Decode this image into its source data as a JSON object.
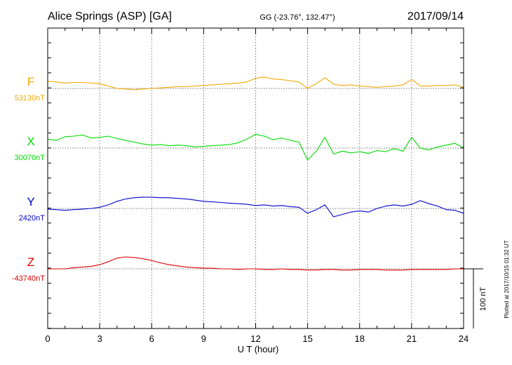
{
  "chart_data": {
    "type": "line",
    "title": "Alice Springs (ASP)  [GA]",
    "subtitle": "GG (-23.76°, 132.47°)",
    "date": "2017/09/14",
    "xlabel": "U T (hour)",
    "xlim": [
      0,
      24
    ],
    "xticks": [
      "0",
      "3",
      "6",
      "9",
      "12",
      "15",
      "18",
      "21",
      "24"
    ],
    "scale_label": "100 nT",
    "scale_nT": 100,
    "footer": "Plotted at 2017/10/15 01:32 UT",
    "grid": true,
    "x": [
      0,
      0.5,
      1,
      1.5,
      2,
      2.5,
      3,
      3.5,
      4,
      4.5,
      5,
      5.5,
      6,
      6.5,
      7,
      7.5,
      8,
      8.5,
      9,
      9.5,
      10,
      10.5,
      11,
      11.5,
      12,
      12.5,
      13,
      13.5,
      14,
      14.5,
      15,
      15.5,
      16,
      16.5,
      17,
      17.5,
      18,
      18.5,
      19,
      19.5,
      20,
      20.5,
      21,
      21.5,
      22,
      22.5,
      23,
      23.5,
      24
    ],
    "series": [
      {
        "name": "F",
        "baseline_label": "53130nT",
        "color": "#f0a800",
        "baseline": 53130,
        "values": [
          53142,
          53141,
          53139,
          53140,
          53140,
          53139,
          53138,
          53134,
          53130,
          53129,
          53128,
          53129,
          53130,
          53131,
          53132,
          53133,
          53133,
          53134,
          53135,
          53136,
          53137,
          53138,
          53139,
          53141,
          53147,
          53149,
          53146,
          53145,
          53143,
          53141,
          53130,
          53138,
          53148,
          53137,
          53135,
          53136,
          53134,
          53133,
          53132,
          53133,
          53134,
          53136,
          53145,
          53134,
          53134,
          53135,
          53135,
          53136,
          53132
        ]
      },
      {
        "name": "X",
        "baseline_label": "30070nT",
        "color": "#00dd00",
        "baseline": 30070,
        "values": [
          30085,
          30083,
          30089,
          30090,
          30092,
          30087,
          30088,
          30090,
          30086,
          30083,
          30080,
          30077,
          30075,
          30076,
          30074,
          30075,
          30074,
          30072,
          30073,
          30074,
          30075,
          30076,
          30079,
          30085,
          30093,
          30090,
          30084,
          30087,
          30083,
          30080,
          30050,
          30065,
          30088,
          30060,
          30065,
          30062,
          30064,
          30061,
          30066,
          30064,
          30069,
          30065,
          30088,
          30070,
          30067,
          30072,
          30075,
          30078,
          30071
        ]
      },
      {
        "name": "Y",
        "baseline_label": "2420nT",
        "color": "#0000cc",
        "baseline": 2420,
        "values": [
          2419,
          2418,
          2417,
          2418,
          2419,
          2420,
          2422,
          2426,
          2432,
          2436,
          2438,
          2439,
          2439,
          2438,
          2438,
          2437,
          2436,
          2434,
          2432,
          2431,
          2430,
          2429,
          2428,
          2427,
          2425,
          2426,
          2424,
          2425,
          2423,
          2422,
          2412,
          2418,
          2426,
          2406,
          2410,
          2414,
          2416,
          2414,
          2420,
          2424,
          2426,
          2424,
          2427,
          2433,
          2428,
          2424,
          2418,
          2417,
          2412
        ]
      },
      {
        "name": "Z",
        "baseline_label": "-43740nT",
        "color": "#dd0000",
        "baseline": -43740,
        "values": [
          -43740,
          -43740,
          -43740,
          -43738,
          -43737,
          -43736,
          -43733,
          -43728,
          -43722,
          -43720,
          -43721,
          -43723,
          -43726,
          -43730,
          -43733,
          -43735,
          -43737,
          -43738,
          -43739,
          -43739,
          -43740,
          -43740,
          -43741,
          -43740,
          -43740,
          -43741,
          -43741,
          -43740,
          -43741,
          -43741,
          -43742,
          -43742,
          -43741,
          -43741,
          -43742,
          -43742,
          -43741,
          -43741,
          -43741,
          -43742,
          -43742,
          -43742,
          -43741,
          -43741,
          -43741,
          -43741,
          -43741,
          -43740,
          -43740
        ]
      }
    ]
  }
}
